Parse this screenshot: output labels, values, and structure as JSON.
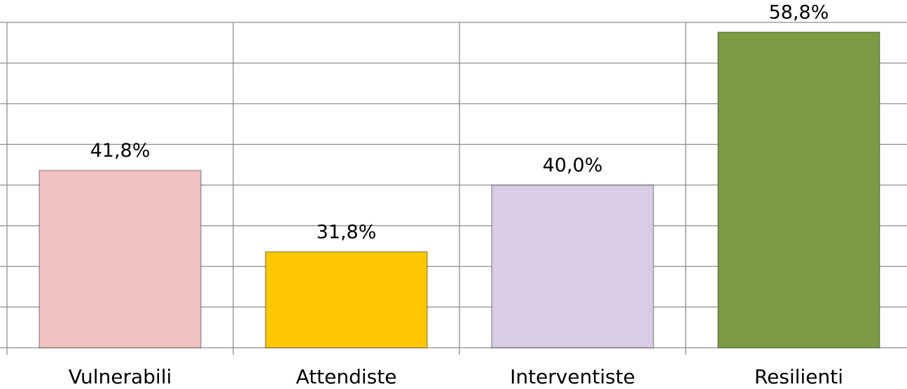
{
  "chart_data": {
    "type": "bar",
    "categories": [
      "Vulnerabili",
      "Attendiste",
      "Interventiste",
      "Resilienti"
    ],
    "values": [
      41.8,
      31.8,
      40.0,
      58.8
    ],
    "value_labels": [
      "41,8%",
      "31,8%",
      "40,0%",
      "58,8%"
    ],
    "colors": [
      "#f2c2c2",
      "#ffc800",
      "#d9cde6",
      "#7b9c42"
    ],
    "ylim": [
      20,
      60
    ],
    "yticks": [
      20,
      25,
      30,
      35,
      40,
      45,
      50,
      55,
      60
    ],
    "grid": true
  }
}
